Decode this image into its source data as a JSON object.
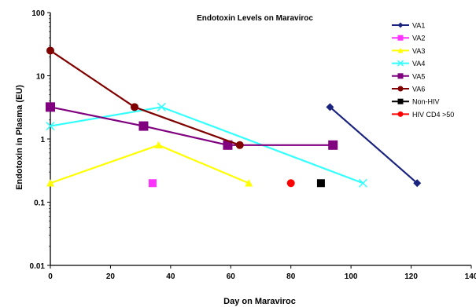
{
  "chart_data": {
    "type": "scatter",
    "title": "Endotoxin Levels on Maraviroc",
    "xlabel": "Day on Maraviroc",
    "ylabel": "Endotoxin in Plasma (EU)",
    "xlim": [
      0,
      140
    ],
    "ylim": [
      0.01,
      100
    ],
    "yscale": "log",
    "x_ticks": [
      "0",
      "20",
      "40",
      "60",
      "80",
      "100",
      "120",
      "140"
    ],
    "y_ticks": [
      "0.01",
      "0.1",
      "1",
      "10",
      "100"
    ],
    "grid": false,
    "legend_position": "right",
    "series": [
      {
        "name": "VA1",
        "color": "#1a237e",
        "marker": "diamond",
        "x": [
          93,
          122
        ],
        "y": [
          3.2,
          0.2
        ]
      },
      {
        "name": "VA2",
        "color": "#ff33ff",
        "marker": "square",
        "x": [
          34
        ],
        "y": [
          0.2
        ]
      },
      {
        "name": "VA3",
        "color": "#ffff00",
        "marker": "triangle",
        "x": [
          0,
          36,
          66
        ],
        "y": [
          0.2,
          0.8,
          0.2
        ]
      },
      {
        "name": "VA4",
        "color": "#33ffff",
        "marker": "x",
        "x": [
          0,
          37,
          104
        ],
        "y": [
          1.6,
          3.2,
          0.2
        ]
      },
      {
        "name": "VA5",
        "color": "#800080",
        "marker": "square",
        "x": [
          0,
          31,
          59,
          94
        ],
        "y": [
          3.2,
          1.6,
          0.8,
          0.8
        ]
      },
      {
        "name": "VA6",
        "color": "#800000",
        "marker": "circle",
        "x": [
          0,
          28,
          63
        ],
        "y": [
          25,
          3.2,
          0.8
        ]
      },
      {
        "name": "Non-HIV",
        "color": "#000000",
        "marker": "square",
        "x": [
          90
        ],
        "y": [
          0.2
        ]
      },
      {
        "name": "HIV CD4 >50",
        "color": "#ff0000",
        "marker": "circle",
        "x": [
          80
        ],
        "y": [
          0.2
        ]
      }
    ]
  }
}
